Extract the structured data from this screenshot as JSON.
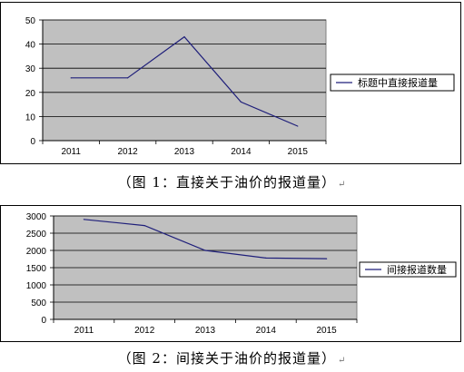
{
  "captions": [
    {
      "text": "（图 1：直接关于油价的报道量）",
      "mark": "↵"
    },
    {
      "text": "（图 2：间接关于油价的报道量）",
      "mark": "↵"
    }
  ],
  "colors": {
    "plot_bg": "#c0c0c0",
    "line": "#1f1f7a",
    "grid": "#000000"
  },
  "chart_data": [
    {
      "type": "line",
      "categories": [
        "2011",
        "2012",
        "2013",
        "2014",
        "2015"
      ],
      "series": [
        {
          "name": "标题中直接报道量",
          "values": [
            26,
            26,
            43,
            16,
            6
          ]
        }
      ],
      "ylim": [
        0,
        50
      ],
      "yticks": [
        0,
        10,
        20,
        30,
        40,
        50
      ],
      "grid": true,
      "legend": "right"
    },
    {
      "type": "line",
      "categories": [
        "2011",
        "2012",
        "2013",
        "2014",
        "2015"
      ],
      "series": [
        {
          "name": "间接报道数量",
          "values": [
            2900,
            2720,
            2000,
            1780,
            1760
          ]
        }
      ],
      "ylim": [
        0,
        3000
      ],
      "yticks": [
        0,
        500,
        1000,
        1500,
        2000,
        2500,
        3000
      ],
      "grid": true,
      "legend": "right"
    }
  ]
}
